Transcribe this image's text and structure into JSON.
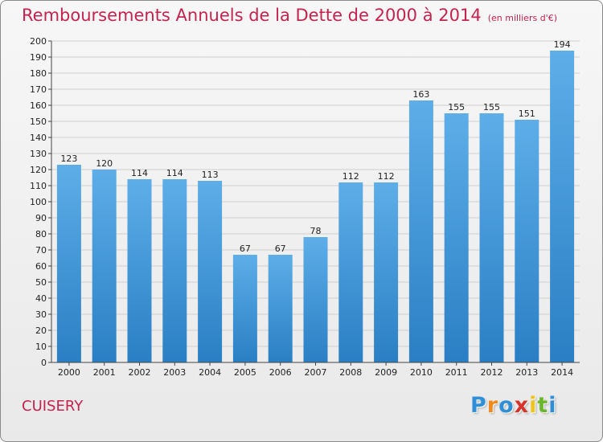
{
  "title": "Remboursements Annuels de la Dette de 2000 à 2014",
  "subtitle": "(en milliers d'€)",
  "commune": "CUISERY",
  "logo_text": "Proxiti",
  "colors": {
    "title": "#c6224e",
    "bar_top": "#5daee8",
    "bar_bottom": "#2a7fc4",
    "grid": "#cfcfcf",
    "axis": "#444444"
  },
  "chart_data": {
    "type": "bar",
    "title": "Remboursements Annuels de la Dette de 2000 à 2014",
    "subtitle": "(en milliers d'€)",
    "xlabel": "",
    "ylabel": "",
    "categories": [
      "2000",
      "2001",
      "2002",
      "2003",
      "2004",
      "2005",
      "2006",
      "2007",
      "2008",
      "2009",
      "2010",
      "2011",
      "2012",
      "2013",
      "2014"
    ],
    "values": [
      123,
      120,
      114,
      114,
      113,
      67,
      67,
      78,
      112,
      112,
      163,
      155,
      155,
      151,
      194
    ],
    "ylim": [
      0,
      200
    ],
    "yticks": [
      0,
      10,
      20,
      30,
      40,
      50,
      60,
      70,
      80,
      90,
      100,
      110,
      120,
      130,
      140,
      150,
      160,
      170,
      180,
      190,
      200
    ],
    "grid": true,
    "legend": "none"
  }
}
